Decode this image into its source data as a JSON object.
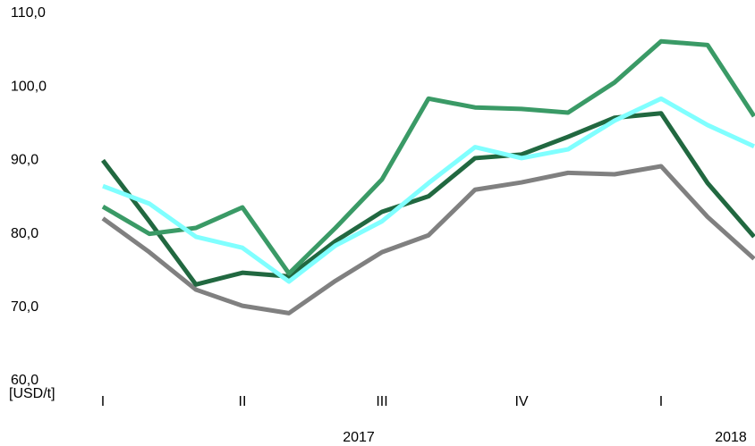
{
  "chart_data": {
    "type": "line",
    "y_label": "[USD/t]",
    "categories": [
      "I",
      null,
      null,
      "II",
      null,
      null,
      "III",
      null,
      null,
      "IV",
      null,
      null,
      "I",
      null,
      null
    ],
    "year_labels": [
      {
        "label": "2017",
        "at": 5.5
      },
      {
        "label": "2018",
        "at": 13.5
      }
    ],
    "ylim": [
      60,
      110
    ],
    "yticks": [
      {
        "value": 60,
        "label": "60,0"
      },
      {
        "value": 70,
        "label": "70,0"
      },
      {
        "value": 80,
        "label": "80,0"
      },
      {
        "value": 90,
        "label": "90,0"
      },
      {
        "value": 100,
        "label": "100,0"
      },
      {
        "value": 110,
        "label": "110,0"
      }
    ],
    "grid": false,
    "series": [
      {
        "color": "#808080",
        "values": [
          82.1,
          77.5,
          72.4,
          70.2,
          69.2,
          73.6,
          77.5,
          79.8,
          86.0,
          87.0,
          88.3,
          88.1,
          89.2,
          82.3,
          76.6
        ]
      },
      {
        "color": "#216840",
        "values": [
          90.0,
          81.7,
          73.1,
          74.7,
          74.2,
          79.0,
          83.0,
          85.1,
          90.3,
          90.8,
          93.2,
          95.8,
          96.4,
          86.9,
          79.6
        ]
      },
      {
        "color": "#3a9a66",
        "values": [
          83.7,
          80.0,
          80.8,
          83.6,
          74.6,
          80.8,
          87.4,
          98.4,
          97.2,
          97.0,
          96.5,
          100.6,
          106.2,
          105.7,
          96.0
        ]
      },
      {
        "color": "#80ffff",
        "values": [
          86.5,
          84.1,
          79.6,
          78.1,
          73.5,
          78.4,
          81.7,
          86.9,
          91.8,
          90.3,
          91.5,
          95.4,
          98.4,
          94.8,
          91.9
        ]
      }
    ]
  }
}
